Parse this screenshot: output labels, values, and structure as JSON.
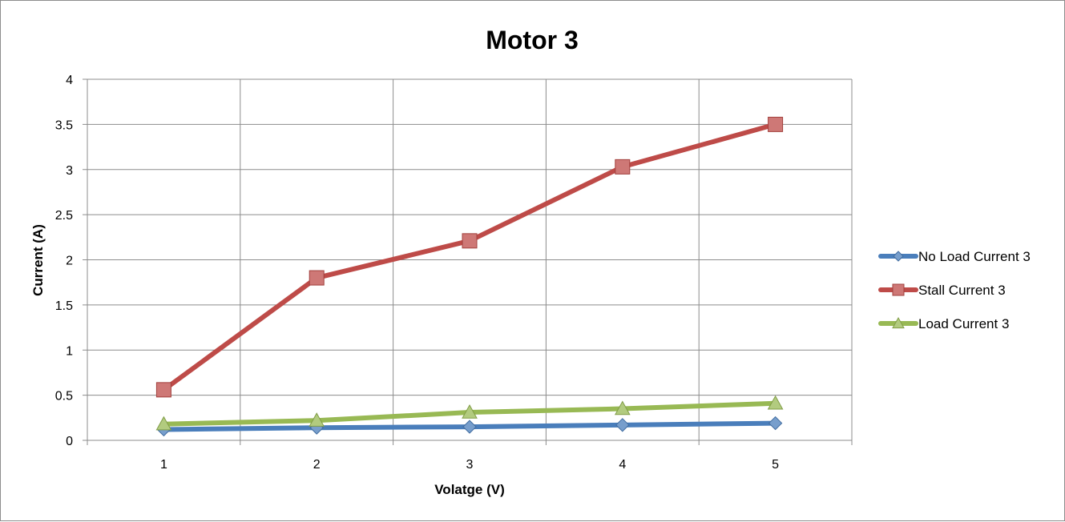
{
  "chart_data": {
    "type": "line",
    "title": "Motor 3",
    "xlabel": "Volatge (V)",
    "ylabel": "Current (A)",
    "x": [
      1,
      2,
      3,
      4,
      5
    ],
    "x_tick_labels": [
      "1",
      "2",
      "3",
      "4",
      "5"
    ],
    "ylim": [
      0,
      4
    ],
    "y_ticks": [
      0,
      0.5,
      1,
      1.5,
      2,
      2.5,
      3,
      3.5,
      4
    ],
    "y_tick_labels": [
      "0",
      "0.5",
      "1",
      "1.5",
      "2",
      "2.5",
      "3",
      "3.5",
      "4"
    ],
    "grid": true,
    "legend_position": "right",
    "series": [
      {
        "name": "No Load Current 3",
        "values": [
          0.12,
          0.14,
          0.15,
          0.17,
          0.19
        ],
        "color": "#4a7ebb",
        "marker": "diamond"
      },
      {
        "name": "Stall Current 3",
        "values": [
          0.56,
          1.8,
          2.21,
          3.03,
          3.5
        ],
        "color": "#be4b48",
        "marker": "square"
      },
      {
        "name": "Load Current 3",
        "values": [
          0.18,
          0.22,
          0.31,
          0.35,
          0.41
        ],
        "color": "#98b954",
        "marker": "triangle"
      }
    ]
  }
}
